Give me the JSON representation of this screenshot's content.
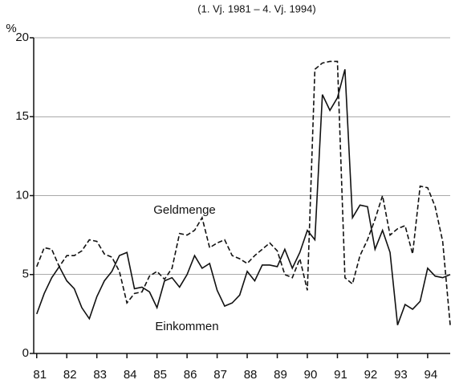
{
  "chart_data": {
    "type": "line",
    "subtitle": "(1. Vj. 1981 – 4. Vj. 1994)",
    "y_label": "%",
    "x": [
      81,
      81.25,
      81.5,
      81.75,
      82,
      82.25,
      82.5,
      82.75,
      83,
      83.25,
      83.5,
      83.75,
      84,
      84.25,
      84.5,
      84.75,
      85,
      85.25,
      85.5,
      85.75,
      86,
      86.25,
      86.5,
      86.75,
      87,
      87.25,
      87.5,
      87.75,
      88,
      88.25,
      88.5,
      88.75,
      89,
      89.25,
      89.5,
      89.75,
      90,
      90.25,
      90.5,
      90.75,
      91,
      91.25,
      91.5,
      91.75,
      92,
      92.25,
      92.5,
      92.75,
      93,
      93.25,
      93.5,
      93.75,
      94,
      94.25,
      94.5,
      94.75
    ],
    "series": [
      {
        "name": "Einkommen",
        "color": "#111111",
        "dash": false,
        "values": [
          2.5,
          3.8,
          4.8,
          5.5,
          4.6,
          4.1,
          2.9,
          2.2,
          3.6,
          4.6,
          5.2,
          6.2,
          6.4,
          4.1,
          4.2,
          3.9,
          2.9,
          4.6,
          4.8,
          4.2,
          5.0,
          6.2,
          5.4,
          5.7,
          4.0,
          3.0,
          3.2,
          3.7,
          5.2,
          4.6,
          5.6,
          5.6,
          5.5,
          6.6,
          5.4,
          6.4,
          7.8,
          7.2,
          16.4,
          15.4,
          16.2,
          18.0,
          8.6,
          9.4,
          9.3,
          6.6,
          7.8,
          6.4,
          1.8,
          3.1,
          2.8,
          3.3,
          5.4,
          4.9,
          4.8,
          5.0
        ]
      },
      {
        "name": "Geldmenge",
        "color": "#111111",
        "dash": true,
        "values": [
          5.5,
          6.7,
          6.6,
          5.5,
          6.2,
          6.2,
          6.5,
          7.2,
          7.1,
          6.3,
          6.1,
          5.2,
          3.2,
          3.8,
          3.9,
          4.9,
          5.2,
          4.7,
          5.4,
          7.6,
          7.5,
          7.8,
          8.6,
          6.7,
          7.0,
          7.2,
          6.2,
          6.0,
          5.7,
          6.2,
          6.6,
          7.0,
          6.5,
          5.0,
          4.8,
          6.0,
          4.0,
          18.0,
          18.4,
          18.5,
          18.5,
          4.8,
          4.4,
          6.2,
          7.2,
          8.5,
          10.0,
          7.5,
          7.9,
          8.1,
          6.3,
          10.6,
          10.5,
          9.3,
          7.1,
          1.8
        ]
      }
    ],
    "xlim": [
      80.9,
      94.75
    ],
    "xticks": [
      81,
      82,
      83,
      84,
      85,
      86,
      87,
      88,
      89,
      90,
      91,
      92,
      93,
      94
    ],
    "ylim": [
      0,
      20
    ],
    "yticks": [
      0,
      5,
      10,
      15,
      20
    ],
    "grid": true
  }
}
